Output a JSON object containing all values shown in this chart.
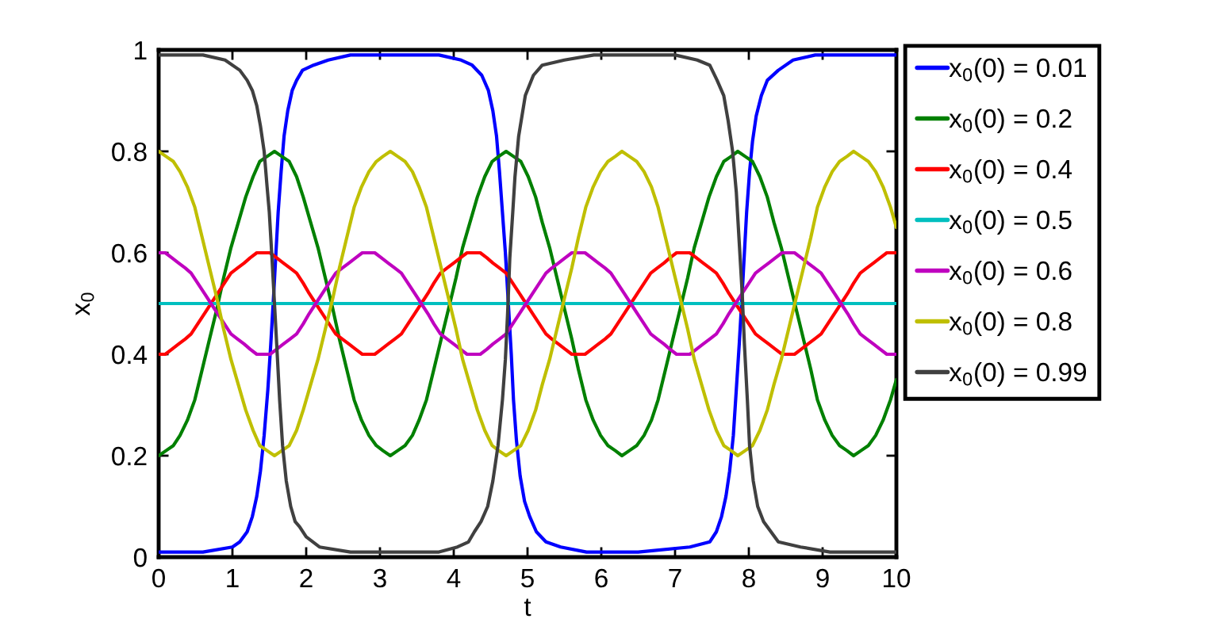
{
  "chart_data": {
    "type": "line",
    "xlabel": "t",
    "ylabel": "x$_{0}$",
    "xlim": [
      0,
      10
    ],
    "ylim": [
      0,
      1
    ],
    "xticks": [
      0,
      1,
      2,
      3,
      4,
      5,
      6,
      7,
      8,
      9,
      10
    ],
    "yticks": [
      0,
      0.2,
      0.4,
      0.6,
      0.8,
      1
    ],
    "legend": "right",
    "series": [
      {
        "name": "x$_{0}$(0) = 0.01",
        "color": "#0000ff",
        "x": [
          0,
          0.6,
          1.0,
          1.1,
          1.2,
          1.27,
          1.33,
          1.38,
          1.43,
          1.48,
          1.52,
          1.56,
          1.59,
          1.62,
          1.66,
          1.7,
          1.75,
          1.81,
          1.87,
          1.95,
          2.1,
          2.3,
          2.6,
          3.8,
          4.1,
          4.25,
          4.38,
          4.47,
          4.53,
          4.58,
          4.62,
          4.66,
          4.7,
          4.74,
          4.78,
          4.81,
          4.85,
          4.9,
          4.96,
          5.03,
          5.12,
          5.25,
          5.45,
          5.8,
          6.5,
          7.2,
          7.47,
          7.56,
          7.63,
          7.69,
          7.74,
          7.79,
          7.83,
          7.87,
          7.91,
          7.94,
          7.97,
          8.01,
          8.05,
          8.1,
          8.17,
          8.25,
          8.4,
          8.6,
          8.9,
          10
        ],
        "values": [
          0.01,
          0.01,
          0.02,
          0.03,
          0.05,
          0.08,
          0.12,
          0.17,
          0.24,
          0.33,
          0.42,
          0.52,
          0.6,
          0.68,
          0.76,
          0.83,
          0.88,
          0.92,
          0.94,
          0.96,
          0.97,
          0.98,
          0.99,
          0.99,
          0.98,
          0.97,
          0.95,
          0.92,
          0.88,
          0.83,
          0.76,
          0.68,
          0.6,
          0.5,
          0.4,
          0.31,
          0.23,
          0.16,
          0.11,
          0.08,
          0.05,
          0.03,
          0.02,
          0.01,
          0.01,
          0.02,
          0.03,
          0.05,
          0.08,
          0.12,
          0.17,
          0.24,
          0.33,
          0.42,
          0.52,
          0.6,
          0.68,
          0.76,
          0.82,
          0.87,
          0.91,
          0.94,
          0.96,
          0.98,
          0.99,
          0.99
        ]
      },
      {
        "name": "x$_{0}$(0) = 0.2",
        "color": "#008000",
        "x": [
          0,
          0.1,
          0.2,
          0.29,
          0.39,
          0.49,
          0.59,
          0.69,
          0.79,
          0.88,
          0.98,
          1.08,
          1.18,
          1.28,
          1.37,
          1.47,
          1.57,
          1.67,
          1.77,
          1.87,
          1.96,
          2.06,
          2.16,
          2.26,
          2.36,
          2.45,
          2.55,
          2.65,
          2.75,
          2.85,
          2.95,
          3.04,
          3.14,
          3.24,
          3.34,
          3.44,
          3.53,
          3.63,
          3.73,
          3.83,
          3.93,
          4.03,
          4.12,
          4.22,
          4.32,
          4.42,
          4.52,
          4.61,
          4.71,
          4.81,
          4.91,
          5.01,
          5.11,
          5.2,
          5.3,
          5.4,
          5.5,
          5.6,
          5.69,
          5.79,
          5.89,
          5.99,
          6.09,
          6.19,
          6.28,
          6.38,
          6.48,
          6.58,
          6.68,
          6.77,
          6.87,
          6.97,
          7.07,
          7.17,
          7.26,
          7.36,
          7.46,
          7.56,
          7.66,
          7.76,
          7.85,
          7.95,
          8.05,
          8.15,
          8.25,
          8.34,
          8.44,
          8.54,
          8.64,
          8.74,
          8.84,
          8.93,
          9.03,
          9.13,
          9.23,
          9.33,
          9.42,
          9.52,
          9.62,
          9.72,
          9.82,
          9.92,
          10
        ],
        "values": [
          0.2,
          0.21,
          0.22,
          0.24,
          0.27,
          0.31,
          0.37,
          0.43,
          0.49,
          0.55,
          0.61,
          0.66,
          0.71,
          0.75,
          0.78,
          0.79,
          0.8,
          0.79,
          0.78,
          0.75,
          0.71,
          0.66,
          0.61,
          0.55,
          0.49,
          0.43,
          0.37,
          0.31,
          0.27,
          0.24,
          0.22,
          0.21,
          0.2,
          0.21,
          0.22,
          0.24,
          0.27,
          0.31,
          0.37,
          0.43,
          0.49,
          0.55,
          0.61,
          0.66,
          0.71,
          0.75,
          0.78,
          0.79,
          0.8,
          0.79,
          0.78,
          0.75,
          0.71,
          0.66,
          0.61,
          0.55,
          0.49,
          0.43,
          0.37,
          0.31,
          0.27,
          0.24,
          0.22,
          0.21,
          0.2,
          0.21,
          0.22,
          0.24,
          0.27,
          0.31,
          0.37,
          0.43,
          0.49,
          0.55,
          0.61,
          0.66,
          0.71,
          0.75,
          0.78,
          0.79,
          0.8,
          0.79,
          0.78,
          0.75,
          0.71,
          0.66,
          0.61,
          0.55,
          0.49,
          0.43,
          0.37,
          0.31,
          0.27,
          0.24,
          0.22,
          0.21,
          0.2,
          0.21,
          0.22,
          0.24,
          0.27,
          0.31,
          0.35
        ]
      },
      {
        "name": "x$_{0}$(0) = 0.4",
        "color": "#ff0000",
        "x": [
          0,
          0.09,
          0.18,
          0.27,
          0.36,
          0.44,
          0.53,
          0.62,
          0.71,
          0.8,
          0.89,
          0.98,
          1.07,
          1.16,
          1.24,
          1.33,
          1.42,
          1.51,
          1.6,
          1.69,
          1.78,
          1.87,
          1.96,
          2.04,
          2.13,
          2.22,
          2.31,
          2.4,
          2.49,
          2.58,
          2.67,
          2.76,
          2.85,
          2.93,
          3.02,
          3.11,
          3.2,
          3.29,
          3.38,
          3.47,
          3.56,
          3.65,
          3.73,
          3.82,
          3.91,
          4.0,
          4.09,
          4.18,
          4.27,
          4.36,
          4.45,
          4.53,
          4.62,
          4.71,
          4.8,
          4.89,
          4.98,
          5.07,
          5.16,
          5.25,
          5.33,
          5.42,
          5.51,
          5.6,
          5.69,
          5.78,
          5.87,
          5.96,
          6.05,
          6.13,
          6.22,
          6.31,
          6.4,
          6.49,
          6.58,
          6.67,
          6.76,
          6.85,
          6.93,
          7.02,
          7.11,
          7.2,
          7.29,
          7.38,
          7.47,
          7.56,
          7.65,
          7.73,
          7.82,
          7.91,
          8.0,
          8.09,
          8.18,
          8.27,
          8.36,
          8.45,
          8.53,
          8.62,
          8.71,
          8.8,
          8.89,
          8.98,
          9.07,
          9.16,
          9.25,
          9.34,
          9.42,
          9.51,
          9.6,
          9.69,
          9.78,
          9.87,
          10
        ],
        "values": [
          0.4,
          0.4,
          0.41,
          0.42,
          0.43,
          0.44,
          0.46,
          0.48,
          0.5,
          0.52,
          0.54,
          0.56,
          0.57,
          0.58,
          0.59,
          0.6,
          0.6,
          0.6,
          0.59,
          0.58,
          0.57,
          0.56,
          0.54,
          0.52,
          0.5,
          0.48,
          0.46,
          0.44,
          0.43,
          0.42,
          0.41,
          0.4,
          0.4,
          0.4,
          0.41,
          0.42,
          0.43,
          0.44,
          0.46,
          0.48,
          0.5,
          0.52,
          0.54,
          0.56,
          0.57,
          0.58,
          0.59,
          0.6,
          0.6,
          0.6,
          0.59,
          0.58,
          0.57,
          0.56,
          0.54,
          0.52,
          0.5,
          0.48,
          0.46,
          0.44,
          0.43,
          0.42,
          0.41,
          0.4,
          0.4,
          0.4,
          0.41,
          0.42,
          0.43,
          0.44,
          0.46,
          0.48,
          0.5,
          0.52,
          0.54,
          0.56,
          0.57,
          0.58,
          0.59,
          0.6,
          0.6,
          0.6,
          0.59,
          0.58,
          0.57,
          0.56,
          0.54,
          0.52,
          0.5,
          0.48,
          0.46,
          0.44,
          0.43,
          0.42,
          0.41,
          0.4,
          0.4,
          0.4,
          0.41,
          0.42,
          0.43,
          0.44,
          0.46,
          0.48,
          0.5,
          0.52,
          0.54,
          0.56,
          0.57,
          0.58,
          0.59,
          0.6,
          0.6
        ]
      },
      {
        "name": "x$_{0}$(0) = 0.5",
        "color": "#00bfbf",
        "x": [
          0,
          10
        ],
        "values": [
          0.5,
          0.5
        ]
      },
      {
        "name": "x$_{0}$(0) = 0.6",
        "color": "#bf00bf",
        "x": [
          0,
          0.09,
          0.18,
          0.27,
          0.36,
          0.44,
          0.53,
          0.62,
          0.71,
          0.8,
          0.89,
          0.98,
          1.07,
          1.16,
          1.24,
          1.33,
          1.42,
          1.51,
          1.6,
          1.69,
          1.78,
          1.87,
          1.96,
          2.04,
          2.13,
          2.22,
          2.31,
          2.4,
          2.49,
          2.58,
          2.67,
          2.76,
          2.85,
          2.93,
          3.02,
          3.11,
          3.2,
          3.29,
          3.38,
          3.47,
          3.56,
          3.65,
          3.73,
          3.82,
          3.91,
          4.0,
          4.09,
          4.18,
          4.27,
          4.36,
          4.45,
          4.53,
          4.62,
          4.71,
          4.8,
          4.89,
          4.98,
          5.07,
          5.16,
          5.25,
          5.33,
          5.42,
          5.51,
          5.6,
          5.69,
          5.78,
          5.87,
          5.96,
          6.05,
          6.13,
          6.22,
          6.31,
          6.4,
          6.49,
          6.58,
          6.67,
          6.76,
          6.85,
          6.93,
          7.02,
          7.11,
          7.2,
          7.29,
          7.38,
          7.47,
          7.56,
          7.65,
          7.73,
          7.82,
          7.91,
          8.0,
          8.09,
          8.18,
          8.27,
          8.36,
          8.45,
          8.53,
          8.62,
          8.71,
          8.8,
          8.89,
          8.98,
          9.07,
          9.16,
          9.25,
          9.34,
          9.42,
          9.51,
          9.6,
          9.69,
          9.78,
          9.87,
          10
        ],
        "values": [
          0.6,
          0.6,
          0.59,
          0.58,
          0.57,
          0.56,
          0.54,
          0.52,
          0.5,
          0.48,
          0.46,
          0.44,
          0.43,
          0.42,
          0.41,
          0.4,
          0.4,
          0.4,
          0.41,
          0.42,
          0.43,
          0.44,
          0.46,
          0.48,
          0.5,
          0.52,
          0.54,
          0.56,
          0.57,
          0.58,
          0.59,
          0.6,
          0.6,
          0.6,
          0.59,
          0.58,
          0.57,
          0.56,
          0.54,
          0.52,
          0.5,
          0.48,
          0.46,
          0.44,
          0.43,
          0.42,
          0.41,
          0.4,
          0.4,
          0.4,
          0.41,
          0.42,
          0.43,
          0.44,
          0.46,
          0.48,
          0.5,
          0.52,
          0.54,
          0.56,
          0.57,
          0.58,
          0.59,
          0.6,
          0.6,
          0.6,
          0.59,
          0.58,
          0.57,
          0.56,
          0.54,
          0.52,
          0.5,
          0.48,
          0.46,
          0.44,
          0.43,
          0.42,
          0.41,
          0.4,
          0.4,
          0.4,
          0.41,
          0.42,
          0.43,
          0.44,
          0.46,
          0.48,
          0.5,
          0.52,
          0.54,
          0.56,
          0.57,
          0.58,
          0.59,
          0.6,
          0.6,
          0.6,
          0.59,
          0.58,
          0.57,
          0.56,
          0.54,
          0.52,
          0.5,
          0.48,
          0.46,
          0.44,
          0.43,
          0.42,
          0.41,
          0.4,
          0.4
        ]
      },
      {
        "name": "x$_{0}$(0) = 0.8",
        "color": "#bfbf00",
        "x": [
          0,
          0.1,
          0.2,
          0.29,
          0.39,
          0.49,
          0.59,
          0.69,
          0.79,
          0.88,
          0.98,
          1.08,
          1.18,
          1.28,
          1.37,
          1.47,
          1.57,
          1.67,
          1.77,
          1.87,
          1.96,
          2.06,
          2.16,
          2.26,
          2.36,
          2.45,
          2.55,
          2.65,
          2.75,
          2.85,
          2.95,
          3.04,
          3.14,
          3.24,
          3.34,
          3.44,
          3.53,
          3.63,
          3.73,
          3.83,
          3.93,
          4.03,
          4.12,
          4.22,
          4.32,
          4.42,
          4.52,
          4.61,
          4.71,
          4.81,
          4.91,
          5.01,
          5.11,
          5.2,
          5.3,
          5.4,
          5.5,
          5.6,
          5.69,
          5.79,
          5.89,
          5.99,
          6.09,
          6.19,
          6.28,
          6.38,
          6.48,
          6.58,
          6.68,
          6.77,
          6.87,
          6.97,
          7.07,
          7.17,
          7.26,
          7.36,
          7.46,
          7.56,
          7.66,
          7.76,
          7.85,
          7.95,
          8.05,
          8.15,
          8.25,
          8.34,
          8.44,
          8.54,
          8.64,
          8.74,
          8.84,
          8.93,
          9.03,
          9.13,
          9.23,
          9.33,
          9.42,
          9.52,
          9.62,
          9.72,
          9.82,
          9.92,
          10
        ],
        "values": [
          0.8,
          0.79,
          0.78,
          0.76,
          0.73,
          0.69,
          0.63,
          0.57,
          0.51,
          0.45,
          0.39,
          0.34,
          0.29,
          0.25,
          0.22,
          0.21,
          0.2,
          0.21,
          0.22,
          0.25,
          0.29,
          0.34,
          0.39,
          0.45,
          0.51,
          0.57,
          0.63,
          0.69,
          0.73,
          0.76,
          0.78,
          0.79,
          0.8,
          0.79,
          0.78,
          0.76,
          0.73,
          0.69,
          0.63,
          0.57,
          0.51,
          0.45,
          0.39,
          0.34,
          0.29,
          0.25,
          0.22,
          0.21,
          0.2,
          0.21,
          0.22,
          0.25,
          0.29,
          0.34,
          0.39,
          0.45,
          0.51,
          0.57,
          0.63,
          0.69,
          0.73,
          0.76,
          0.78,
          0.79,
          0.8,
          0.79,
          0.78,
          0.76,
          0.73,
          0.69,
          0.63,
          0.57,
          0.51,
          0.45,
          0.39,
          0.34,
          0.29,
          0.25,
          0.22,
          0.21,
          0.2,
          0.21,
          0.22,
          0.25,
          0.29,
          0.34,
          0.39,
          0.45,
          0.51,
          0.57,
          0.63,
          0.69,
          0.73,
          0.76,
          0.78,
          0.79,
          0.8,
          0.79,
          0.78,
          0.76,
          0.73,
          0.69,
          0.65
        ]
      },
      {
        "name": "x$_{0}$(0) = 0.99",
        "color": "#404040",
        "x": [
          0,
          0.6,
          0.9,
          1.1,
          1.2,
          1.27,
          1.33,
          1.38,
          1.43,
          1.47,
          1.5,
          1.54,
          1.57,
          1.6,
          1.64,
          1.68,
          1.73,
          1.79,
          1.85,
          1.91,
          2.0,
          2.18,
          2.6,
          3.8,
          4.05,
          4.2,
          4.28,
          4.37,
          4.46,
          4.53,
          4.6,
          4.66,
          4.7,
          4.73,
          4.76,
          4.8,
          4.83,
          4.88,
          4.97,
          5.08,
          5.2,
          5.5,
          5.9,
          7.0,
          7.3,
          7.47,
          7.57,
          7.66,
          7.72,
          7.78,
          7.83,
          7.87,
          7.91,
          7.94,
          7.98,
          8.01,
          8.06,
          8.12,
          8.2,
          8.3,
          8.4,
          8.7,
          9.1,
          10
        ],
        "values": [
          0.99,
          0.99,
          0.98,
          0.96,
          0.94,
          0.92,
          0.89,
          0.85,
          0.8,
          0.73,
          0.68,
          0.58,
          0.5,
          0.42,
          0.31,
          0.22,
          0.15,
          0.1,
          0.07,
          0.06,
          0.04,
          0.02,
          0.01,
          0.01,
          0.02,
          0.03,
          0.05,
          0.07,
          0.1,
          0.15,
          0.22,
          0.31,
          0.39,
          0.48,
          0.59,
          0.68,
          0.75,
          0.83,
          0.91,
          0.95,
          0.97,
          0.98,
          0.99,
          0.99,
          0.98,
          0.97,
          0.94,
          0.91,
          0.86,
          0.8,
          0.72,
          0.62,
          0.52,
          0.42,
          0.31,
          0.22,
          0.15,
          0.1,
          0.07,
          0.05,
          0.03,
          0.02,
          0.01,
          0.01
        ]
      }
    ]
  }
}
